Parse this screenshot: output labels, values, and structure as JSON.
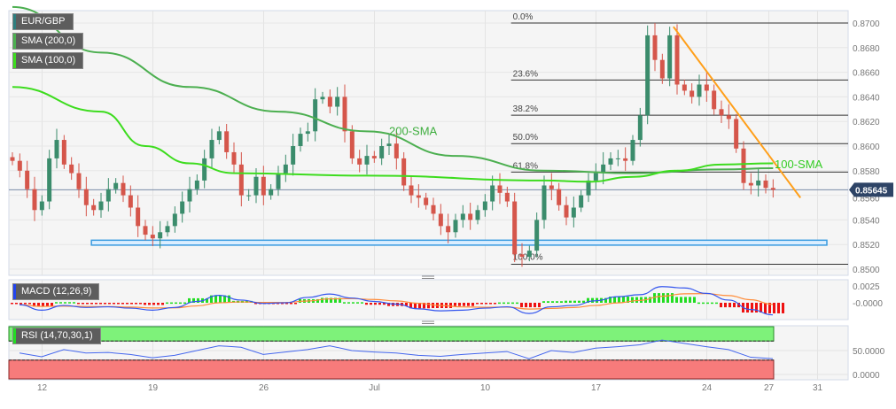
{
  "legend": {
    "pair": "EUR/GBP",
    "sma200": "SMA (200,0)",
    "sma100": "SMA (100,0)",
    "macd": "MACD (12,26,9)",
    "rsi": "RSI (14,70,30,1)"
  },
  "colors": {
    "up": "#3b8c6c",
    "down": "#d5564b",
    "sma200": "#4caf50",
    "sma100": "#3ddc1e",
    "trend": "#ff9f1a",
    "support": "#3a9be0",
    "macd": "#3355ee",
    "signal": "#ff8c3a",
    "price_tag": "#2e4466"
  },
  "chart_data": [
    {
      "type": "candlestick",
      "title": "EUR/GBP",
      "ylim": [
        0.8495,
        0.8712
      ],
      "y_ticks": [
        "0.8700",
        "0.8680",
        "0.8660",
        "0.8640",
        "0.8620",
        "0.8600",
        "0.8580",
        "0.8560",
        "0.8540",
        "0.8520",
        "0.8500"
      ],
      "y_tick_values": [
        0.87,
        0.868,
        0.866,
        0.864,
        0.862,
        0.86,
        0.858,
        0.856,
        0.854,
        0.852,
        0.85
      ],
      "x_ticks": [
        "12",
        "19",
        "26",
        "Jul",
        "10",
        "17",
        "24",
        "27",
        "31"
      ],
      "x_tick_days": [
        1.5,
        6.5,
        11.5,
        16.5,
        21.5,
        26.5,
        31.5,
        34.3,
        36.5
      ],
      "candles_per_day": 3,
      "closes": [
        0.8588,
        0.858,
        0.8565,
        0.8548,
        0.8555,
        0.859,
        0.8605,
        0.8585,
        0.8578,
        0.8565,
        0.8552,
        0.8548,
        0.8555,
        0.8565,
        0.857,
        0.856,
        0.855,
        0.8535,
        0.8528,
        0.8525,
        0.853,
        0.8535,
        0.8545,
        0.8555,
        0.8565,
        0.8572,
        0.859,
        0.8605,
        0.8612,
        0.8595,
        0.8585,
        0.856,
        0.856,
        0.8575,
        0.856,
        0.8565,
        0.8578,
        0.8585,
        0.86,
        0.861,
        0.8612,
        0.8638,
        0.864,
        0.8632,
        0.864,
        0.8612,
        0.859,
        0.8585,
        0.8592,
        0.859,
        0.86,
        0.8602,
        0.859,
        0.8568,
        0.856,
        0.8558,
        0.8552,
        0.8545,
        0.8535,
        0.853,
        0.854,
        0.8545,
        0.854,
        0.8548,
        0.8555,
        0.8568,
        0.8562,
        0.8555,
        0.8512,
        0.851,
        0.8515,
        0.854,
        0.8568,
        0.8565,
        0.8552,
        0.8542,
        0.855,
        0.856,
        0.8572,
        0.8578,
        0.8585,
        0.859,
        0.859,
        0.8588,
        0.8605,
        0.8625,
        0.869,
        0.867,
        0.8655,
        0.869,
        0.865,
        0.8645,
        0.864,
        0.865,
        0.8645,
        0.863,
        0.8625,
        0.8622,
        0.8598,
        0.857,
        0.8568,
        0.8572,
        0.8566,
        0.85645
      ],
      "sma200": {
        "idx": [
          0,
          12,
          24,
          36,
          48,
          60,
          72,
          84,
          96,
          103
        ],
        "values": [
          0.8713,
          0.8676,
          0.8648,
          0.8628,
          0.8612,
          0.8592,
          0.858,
          0.8578,
          0.8581,
          0.8582
        ]
      },
      "sma100": {
        "idx": [
          0,
          12,
          18,
          24,
          30,
          48,
          72,
          78,
          84,
          90,
          96,
          103
        ],
        "values": [
          0.8648,
          0.8628,
          0.86,
          0.8586,
          0.8578,
          0.8576,
          0.8572,
          0.8571,
          0.8575,
          0.858,
          0.8585,
          0.8586
        ]
      },
      "fibonacci": {
        "start_idx": 68,
        "levels": [
          {
            "label": "0.0%",
            "price": 0.87
          },
          {
            "label": "23.6%",
            "price": 0.86537
          },
          {
            "label": "38.2%",
            "price": 0.86251
          },
          {
            "label": "50.0%",
            "price": 0.8602
          },
          {
            "label": "61.8%",
            "price": 0.85789
          },
          {
            "label": "100.0%",
            "price": 0.8504
          }
        ]
      },
      "trendline": {
        "from": {
          "idx": 89.5,
          "price": 0.8697
        },
        "to": {
          "idx": 106.7,
          "price": 0.8558
        }
      },
      "support_zone": {
        "from_idx": 10.7,
        "low": 0.85195,
        "high": 0.85235
      },
      "annotations": [
        {
          "text": "200-SMA",
          "idx": 51,
          "price": 0.8612
        },
        {
          "text": "100-SMA",
          "idx": 103.2,
          "price": 0.8585
        }
      ],
      "last_price": 0.85645,
      "last_price_label": "0.85645"
    },
    {
      "type": "line",
      "title": "MACD (12,26,9)",
      "ylim": [
        -0.0023,
        0.003
      ],
      "y_ticks": [
        "0.0025",
        "-0.0000"
      ],
      "y_tick_values": [
        0.0025,
        0
      ],
      "macd_daily": [
        -0.0003,
        -0.0011,
        -0.0004,
        -0.0007,
        -0.0006,
        -0.0008,
        -0.0011,
        -0.0007,
        0.0002,
        0.0011,
        0.0004,
        -0.0001,
        0.0,
        0.0008,
        0.0013,
        0.0007,
        0.0002,
        -0.0002,
        -0.0009,
        -0.0012,
        -0.0011,
        -0.0008,
        -0.0006,
        -0.0016,
        -0.0006,
        -0.0004,
        0.0003,
        0.0009,
        0.0012,
        0.0024,
        0.0022,
        0.0014,
        0.0004,
        -0.001,
        -0.0018
      ]
    },
    {
      "type": "line",
      "title": "RSI (14,70,30,1)",
      "ylim": [
        0,
        110
      ],
      "y_ticks": [
        "50.0000",
        "0.0000"
      ],
      "y_tick_values": [
        50,
        0
      ],
      "overbought": 70,
      "oversold": 30,
      "rsi_daily": [
        45,
        37,
        52,
        45,
        46,
        42,
        35,
        40,
        50,
        60,
        57,
        42,
        47,
        52,
        60,
        50,
        47,
        45,
        40,
        38,
        42,
        45,
        48,
        33,
        50,
        46,
        55,
        58,
        62,
        72,
        65,
        58,
        52,
        36,
        33
      ]
    }
  ]
}
